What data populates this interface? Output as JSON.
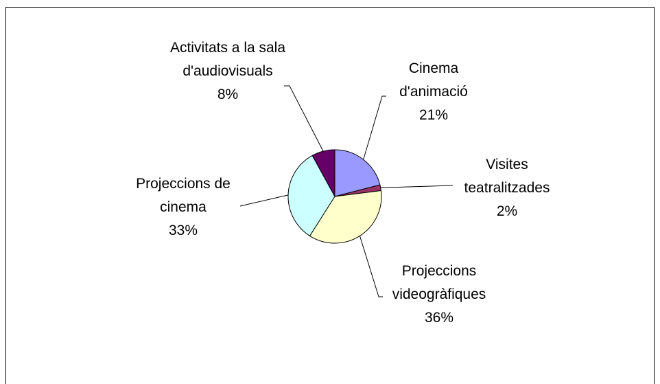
{
  "chart_data": {
    "type": "pie",
    "categories": [
      "Cinema d'animació",
      "Visites teatralitzades",
      "Projeccions videogràfiques",
      "Projeccions de cinema",
      "Activitats a la sala d'audiovisuals"
    ],
    "values": [
      21,
      2,
      36,
      33,
      8
    ],
    "value_labels": [
      "21%",
      "2%",
      "36%",
      "33%",
      "8%"
    ],
    "colors": [
      "#9999ff",
      "#993366",
      "#ffffcc",
      "#ccffff",
      "#660066"
    ]
  }
}
